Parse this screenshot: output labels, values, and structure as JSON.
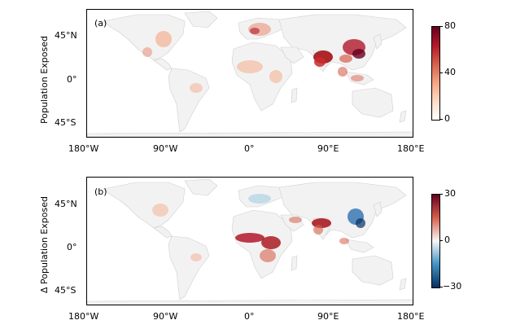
{
  "figure": {
    "x_ticks": [
      "180°W",
      "90°W",
      "0°",
      "90°E",
      "180°E"
    ],
    "y_ticks": [
      "45°N",
      "0°",
      "45°S"
    ]
  },
  "panels": [
    {
      "letter": "(a)",
      "ylabel": "Population Exposed",
      "colorbar": {
        "ticks": [
          "80",
          "40",
          "0"
        ],
        "range": [
          0,
          80
        ],
        "colormap": "white-red",
        "colors": [
          "#ffffff",
          "#f4a582",
          "#b2182b",
          "#67001f"
        ]
      }
    },
    {
      "letter": "(b)",
      "ylabel": "Δ Population Exposed",
      "colorbar": {
        "ticks": [
          "30",
          "0",
          "−30"
        ],
        "range": [
          -30,
          30
        ],
        "colormap": "blue-white-red",
        "colors": [
          "#67001f",
          "#d6604d",
          "#f7f7f7",
          "#4393c3",
          "#053061"
        ]
      }
    }
  ]
}
